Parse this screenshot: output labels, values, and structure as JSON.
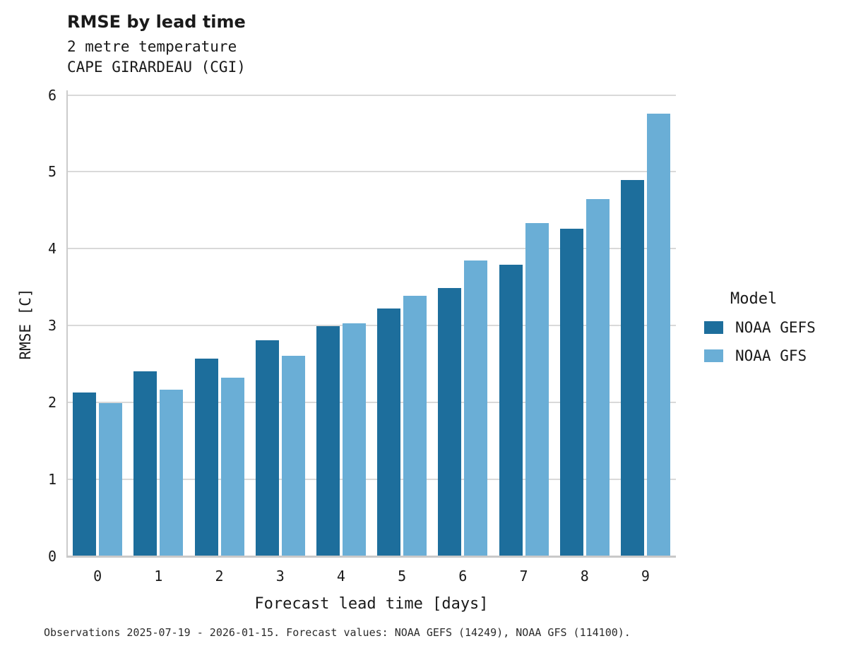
{
  "caption": "Observations 2025-07-19 - 2026-01-15. Forecast values: NOAA GEFS (14249), NOAA GFS (114100).",
  "colors": {
    "noaa_gefs": "#1d6e9c",
    "noaa_gfs": "#6aaed6",
    "gridline": "#d9d9d9",
    "axis_spine": "#cccccc",
    "text": "#1a1a1a"
  },
  "chart_data": {
    "type": "bar",
    "title": "RMSE by lead time",
    "subtitle": [
      "2 metre temperature",
      "CAPE GIRARDEAU (CGI)"
    ],
    "categories": [
      "0",
      "1",
      "2",
      "3",
      "4",
      "5",
      "6",
      "7",
      "8",
      "9"
    ],
    "series": [
      {
        "name": "NOAA GEFS",
        "color": "#1d6e9c",
        "values": [
          2.13,
          2.41,
          2.57,
          2.81,
          2.99,
          3.22,
          3.49,
          3.79,
          4.26,
          4.89
        ]
      },
      {
        "name": "NOAA GFS",
        "color": "#6aaed6",
        "values": [
          1.99,
          2.17,
          2.32,
          2.61,
          3.03,
          3.39,
          3.85,
          4.33,
          4.65,
          5.76
        ]
      }
    ],
    "xlabel": "Forecast lead time [days]",
    "ylabel": "RMSE [C]",
    "ylim": [
      0,
      6.06
    ],
    "yticks": [
      0,
      1,
      2,
      3,
      4,
      5,
      6
    ],
    "grid": "horizontal-major-only",
    "legend_title": "Model",
    "legend_position": "right"
  }
}
